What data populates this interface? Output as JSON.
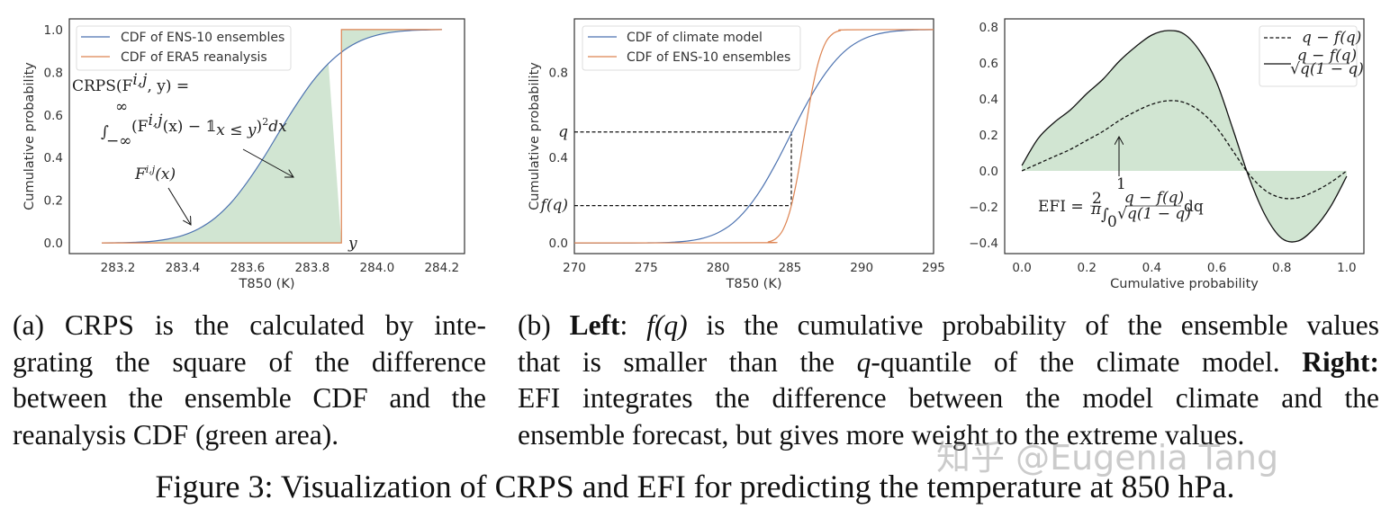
{
  "colors": {
    "blue": "#4c72b0",
    "orange": "#dd8452",
    "fill": "#d1e5d2",
    "black": "#111111",
    "spine": "#333333"
  },
  "chart_data": [
    {
      "type": "line",
      "xlabel": "T850 (K)",
      "ylabel": "Cumulative probability",
      "xlim": [
        283.05,
        284.27
      ],
      "ylim": [
        -0.05,
        1.05
      ],
      "xticks": [
        283.2,
        283.4,
        283.6,
        283.8,
        284.0,
        284.2
      ],
      "xtick_labels": [
        "283.2",
        "283.4",
        "283.6",
        "283.8",
        "284.0",
        "284.2"
      ],
      "yticks": [
        0,
        0.2,
        0.4,
        0.6,
        0.8,
        1.0
      ],
      "ytick_labels": [
        "0.0",
        "0.2",
        "0.4",
        "0.6",
        "0.8",
        "1.0"
      ],
      "grid": false,
      "legend": "top-left",
      "series": [
        {
          "name": "CDF of ENS-10 ensembles",
          "color": "blue",
          "x": [
            283.15,
            283.2,
            283.25,
            283.3,
            283.35,
            283.4,
            283.45,
            283.5,
            283.55,
            283.6,
            283.65,
            283.7,
            283.75,
            283.8,
            283.85,
            283.9,
            283.95,
            284.0,
            284.05,
            284.1,
            284.15,
            284.2
          ],
          "y": [
            0.0004,
            0.001,
            0.003,
            0.007,
            0.017,
            0.035,
            0.067,
            0.117,
            0.19,
            0.287,
            0.4,
            0.525,
            0.646,
            0.755,
            0.841,
            0.905,
            0.948,
            0.974,
            0.988,
            0.995,
            0.998,
            1.0
          ]
        },
        {
          "name": "CDF of ERA5 reanalysis",
          "color": "orange",
          "x": [
            283.15,
            283.89,
            283.89,
            284.2
          ],
          "y": [
            0,
            0,
            1,
            1
          ]
        }
      ],
      "shaded": "area between the two CDFs (green)",
      "annotations": {
        "crps_line1": "CRPS(F",
        "crps_sup": "i,j",
        "crps_line1_end": ", y) =",
        "integral": "∫",
        "int_upper": "∞",
        "int_lower": "−∞",
        "integrand": "(F",
        "integrand_sup": "i,j",
        "integrand_mid": "(x) − 𝟙",
        "integrand_sub": "x ≤ y",
        "integrand_end": ")",
        "integrand_pow": "2",
        "integrand_dx": "dx",
        "fx_label": "F",
        "fx_sup": "i,j",
        "fx_end": "(x)",
        "y_label": "y"
      }
    },
    {
      "type": "line",
      "xlabel": "T850 (K)",
      "ylabel": "Cumulative probability",
      "xlim": [
        270,
        295
      ],
      "ylim": [
        -0.05,
        1.05
      ],
      "xticks": [
        270,
        275,
        280,
        285,
        290,
        295
      ],
      "xtick_labels": [
        "270",
        "275",
        "280",
        "285",
        "290",
        "295"
      ],
      "yticks": [
        0,
        0.175,
        0.4,
        0.52,
        0.8
      ],
      "ytick_labels": [
        "0.0",
        "f(q)",
        "0.4",
        "q",
        "0.8"
      ],
      "grid": false,
      "legend": "top-left",
      "q": 0.52,
      "f_q": 0.175,
      "q_quantile_x": 285.1,
      "series": [
        {
          "name": "CDF of climate model",
          "color": "blue",
          "x": [
            270,
            271,
            272,
            273,
            274,
            275,
            276,
            277,
            278,
            279,
            280,
            281,
            282,
            283,
            284,
            285,
            286,
            287,
            288,
            289,
            290,
            291,
            292,
            293,
            294,
            295
          ],
          "y": [
            0,
            0,
            0,
            0,
            0.0001,
            0.0004,
            0.0013,
            0.004,
            0.01,
            0.023,
            0.048,
            0.091,
            0.159,
            0.252,
            0.369,
            0.5,
            0.631,
            0.748,
            0.841,
            0.909,
            0.952,
            0.977,
            0.99,
            0.996,
            0.9987,
            0.9996
          ]
        },
        {
          "name": "CDF of ENS-10 ensembles",
          "color": "orange",
          "x": [
            270,
            283,
            283.5,
            284,
            284.5,
            285,
            285.5,
            286,
            286.5,
            287,
            287.5,
            288,
            288.5,
            289,
            295
          ],
          "y": [
            0,
            0.001,
            0.005,
            0.019,
            0.059,
            0.149,
            0.3,
            0.5,
            0.7,
            0.851,
            0.941,
            0.981,
            0.995,
            0.999,
            1.0
          ]
        }
      ]
    },
    {
      "type": "line",
      "xlabel": "Cumulative probability",
      "ylabel": "",
      "xlim": [
        -0.053,
        1.053
      ],
      "ylim": [
        -0.46,
        0.845
      ],
      "xticks": [
        0,
        0.2,
        0.4,
        0.6,
        0.8,
        1.0
      ],
      "xtick_labels": [
        "0.0",
        "0.2",
        "0.4",
        "0.6",
        "0.8",
        "1.0"
      ],
      "yticks": [
        -0.4,
        -0.2,
        0,
        0.2,
        0.4,
        0.6,
        0.8
      ],
      "ytick_labels": [
        "−0.4",
        "−0.2",
        "0.0",
        "0.2",
        "0.4",
        "0.6",
        "0.8"
      ],
      "grid": false,
      "legend": "top-right",
      "series": [
        {
          "name": "q − f(q)",
          "style": "dashed",
          "color": "black",
          "x": [
            0,
            0.05,
            0.1,
            0.15,
            0.2,
            0.25,
            0.3,
            0.35,
            0.4,
            0.45,
            0.5,
            0.55,
            0.6,
            0.65,
            0.7,
            0.75,
            0.8,
            0.85,
            0.9,
            0.95,
            1.0
          ],
          "y": [
            0,
            0.04,
            0.08,
            0.12,
            0.17,
            0.22,
            0.28,
            0.33,
            0.37,
            0.39,
            0.38,
            0.33,
            0.24,
            0.11,
            -0.02,
            -0.11,
            -0.15,
            -0.15,
            -0.115,
            -0.065,
            0
          ]
        },
        {
          "name": "(q − f(q)) / √(q(1−q))",
          "style": "solid",
          "color": "black",
          "x": [
            0,
            0.05,
            0.1,
            0.15,
            0.2,
            0.25,
            0.3,
            0.35,
            0.4,
            0.45,
            0.5,
            0.55,
            0.6,
            0.65,
            0.7,
            0.75,
            0.8,
            0.85,
            0.9,
            0.95,
            1.0
          ],
          "y": [
            0.03,
            0.18,
            0.27,
            0.34,
            0.43,
            0.51,
            0.61,
            0.69,
            0.755,
            0.78,
            0.76,
            0.66,
            0.49,
            0.23,
            -0.04,
            -0.25,
            -0.375,
            -0.39,
            -0.32,
            -0.2,
            -0.03
          ]
        }
      ],
      "shaded": "area between solid curve and zero (green)",
      "legend_labels": {
        "dashed": "q − f(q)",
        "solid_num": "q − f(q)",
        "solid_den": "√q(1 − q)"
      },
      "annotations": {
        "efi_lhs": "EFI =",
        "efi_coef_num": "2",
        "efi_coef_den": "π",
        "integral": "∫",
        "int_upper": "1",
        "int_lower": "0",
        "frac_num": "q − f(q)",
        "frac_den": "√q(1 − q)",
        "dq": "dq"
      }
    }
  ],
  "caption_a": {
    "lines": [
      "(a) CRPS is the calculated by inte-",
      "grating the square of the difference",
      "between the ensemble CDF and the",
      "reanalysis CDF (green area)."
    ]
  },
  "caption_b": {
    "prefix": "(b) ",
    "left_bold": "Left",
    "colon1": ": ",
    "fq": "f(q)",
    "line1_rest": " is the cumulative probability of the ensemble values",
    "line2_a": "that is smaller than the ",
    "line2_q": "q",
    "line2_b": "-quantile of the climate model. ",
    "right_bold": "Right",
    "colon2": ":",
    "line3": "EFI integrates the difference between the model climate and the",
    "line4": "ensemble forecast, but gives more weight to the extreme values."
  },
  "figure_caption": "Figure 3: Visualization of CRPS and EFI for predicting the temperature at 850 hPa.",
  "watermark": "知乎 @Eugenia Tang"
}
